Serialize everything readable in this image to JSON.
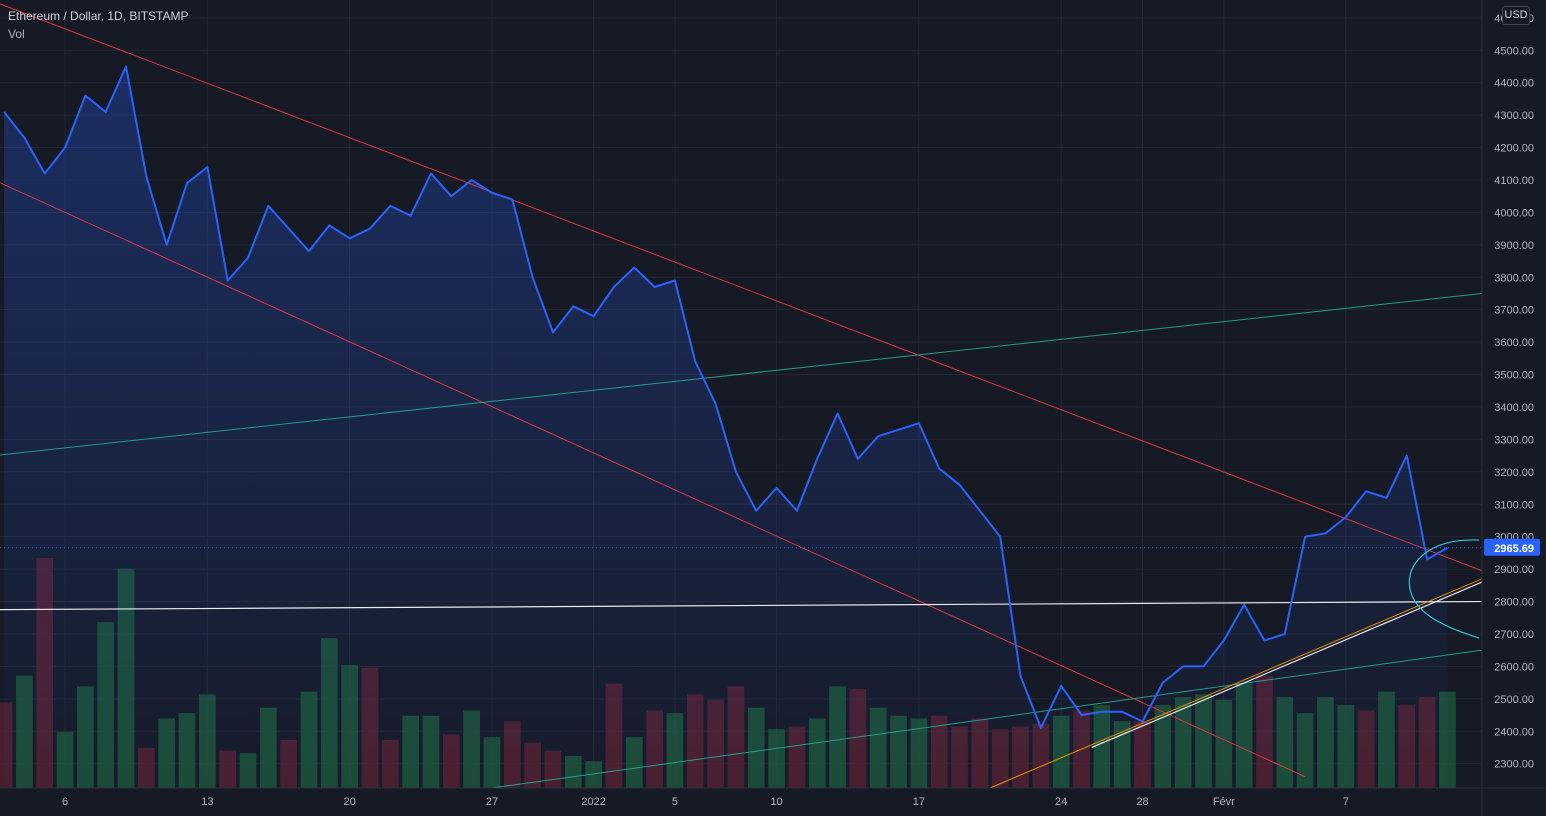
{
  "header": {
    "title": "Ethereum / Dollar, 1D, BITSTAMP",
    "volume_label": "Vol"
  },
  "currency_label": "USD",
  "colors": {
    "background": "#161a25",
    "price_line": "#2962ff",
    "downtrend_lines": "#f23645",
    "uptrend_lines": "#22ab94",
    "support_line": "#ffffff",
    "orange_trendline": "#ff9800",
    "volume_up": "#1e5c3a",
    "volume_down": "#5c2230",
    "last_price_badge": "#2962ff"
  },
  "chart_data": {
    "type": "line",
    "title": "Ethereum / Dollar, 1D, BITSTAMP",
    "series": [
      {
        "name": "Ethereum / Dollar",
        "x": [
          0,
          1,
          2,
          3,
          4,
          5,
          6,
          7,
          8,
          9,
          10,
          11,
          12,
          13,
          14,
          15,
          16,
          17,
          18,
          19,
          20,
          21,
          22,
          23,
          24,
          25,
          26,
          27,
          28,
          29,
          30,
          31,
          32,
          33,
          34,
          35,
          36,
          37,
          38,
          39,
          40,
          41,
          42,
          43,
          44,
          45,
          46,
          47,
          48,
          49,
          50,
          51,
          52,
          53,
          54,
          55,
          56,
          57,
          58,
          59,
          60,
          61,
          62,
          63,
          64,
          65,
          66,
          67,
          68,
          69,
          70,
          71
        ],
        "values": [
          4310,
          4230,
          4120,
          4200,
          4360,
          4310,
          4450,
          4110,
          3900,
          4090,
          4140,
          3790,
          3860,
          4020,
          3950,
          3880,
          3960,
          3920,
          3950,
          4020,
          3990,
          4120,
          4050,
          4100,
          4060,
          4040,
          3800,
          3630,
          3710,
          3680,
          3770,
          3830,
          3770,
          3790,
          3540,
          3410,
          3200,
          3080,
          3150,
          3080,
          3240,
          3380,
          3240,
          3310,
          3330,
          3350,
          3210,
          3160,
          3080,
          3000,
          2570,
          2410,
          2540,
          2450,
          2460,
          2460,
          2430,
          2550,
          2600,
          2600,
          2680,
          2790,
          2680,
          2700,
          3000,
          3010,
          3060,
          3140,
          3120,
          3250,
          2930,
          2965.69
        ]
      }
    ],
    "y_ticks": [
      "4600.00",
      "4500.00",
      "4400.00",
      "4300.00",
      "4200.00",
      "4100.00",
      "4000.00",
      "3900.00",
      "3800.00",
      "3700.00",
      "3600.00",
      "3500.00",
      "3400.00",
      "3300.00",
      "3200.00",
      "3100.00",
      "3000.00",
      "2900.00",
      "2800.00",
      "2700.00",
      "2600.00",
      "2500.00",
      "2400.00",
      "2300.00"
    ],
    "ylim": [
      2225,
      4655
    ],
    "x_ticks": [
      {
        "label": "6",
        "x": 3
      },
      {
        "label": "13",
        "x": 10
      },
      {
        "label": "20",
        "x": 17
      },
      {
        "label": "27",
        "x": 24
      },
      {
        "label": "2022",
        "x": 29
      },
      {
        "label": "5",
        "x": 33
      },
      {
        "label": "10",
        "x": 38
      },
      {
        "label": "17",
        "x": 45
      },
      {
        "label": "24",
        "x": 52
      },
      {
        "label": "28",
        "x": 56
      },
      {
        "label": "Févr",
        "x": 60
      },
      {
        "label": "7",
        "x": 66
      }
    ],
    "xlim": [
      -0.2,
      72.7
    ],
    "last_price": "2965.69",
    "volume": [
      320,
      420,
      860,
      210,
      380,
      620,
      820,
      150,
      260,
      280,
      350,
      140,
      130,
      300,
      180,
      360,
      560,
      460,
      450,
      180,
      270,
      270,
      200,
      290,
      190,
      250,
      170,
      140,
      120,
      100,
      390,
      190,
      290,
      280,
      350,
      330,
      380,
      300,
      220,
      230,
      260,
      380,
      370,
      300,
      270,
      260,
      270,
      230,
      260,
      220,
      230,
      240,
      270,
      290,
      310,
      250,
      250,
      310,
      340,
      350,
      330,
      390,
      420,
      340,
      280,
      340,
      310,
      290,
      360,
      310,
      340,
      360
    ],
    "volume_up": [
      false,
      true,
      false,
      true,
      true,
      true,
      true,
      false,
      true,
      true,
      true,
      false,
      true,
      true,
      false,
      true,
      true,
      true,
      false,
      false,
      true,
      true,
      false,
      true,
      true,
      false,
      false,
      false,
      true,
      true,
      false,
      true,
      false,
      true,
      false,
      false,
      false,
      true,
      true,
      false,
      true,
      true,
      false,
      true,
      true,
      true,
      false,
      false,
      false,
      false,
      false,
      false,
      true,
      false,
      true,
      true,
      false,
      true,
      true,
      true,
      true,
      true,
      false,
      true,
      true,
      true,
      true,
      false,
      true,
      false,
      false,
      true
    ],
    "trendlines": [
      {
        "name": "upper-downtrend",
        "color": "#f23645",
        "from": [
          -0.5,
          4650
        ],
        "to": [
          72.7,
          2895
        ]
      },
      {
        "name": "lower-downtrend",
        "color": "#f23645",
        "from": [
          -0.5,
          4100
        ],
        "to": [
          64,
          2260
        ]
      },
      {
        "name": "upper-uptrend",
        "color": "#22ab94",
        "from": [
          -0.5,
          3250
        ],
        "to": [
          72.7,
          3750
        ]
      },
      {
        "name": "lower-uptrend",
        "color": "#22ab94",
        "from": [
          24,
          2225
        ],
        "to": [
          72.7,
          2650
        ]
      },
      {
        "name": "support-line",
        "color": "#ffffff",
        "from": [
          -0.5,
          2775
        ],
        "to": [
          72.7,
          2800
        ]
      },
      {
        "name": "white-rising-line",
        "color": "#ffffff",
        "from": [
          53.5,
          2350
        ],
        "to": [
          72.7,
          2860
        ]
      },
      {
        "name": "orange-rising-line",
        "color": "#ff9800",
        "from": [
          48.5,
          2225
        ],
        "to": [
          72.7,
          2870
        ]
      }
    ]
  }
}
